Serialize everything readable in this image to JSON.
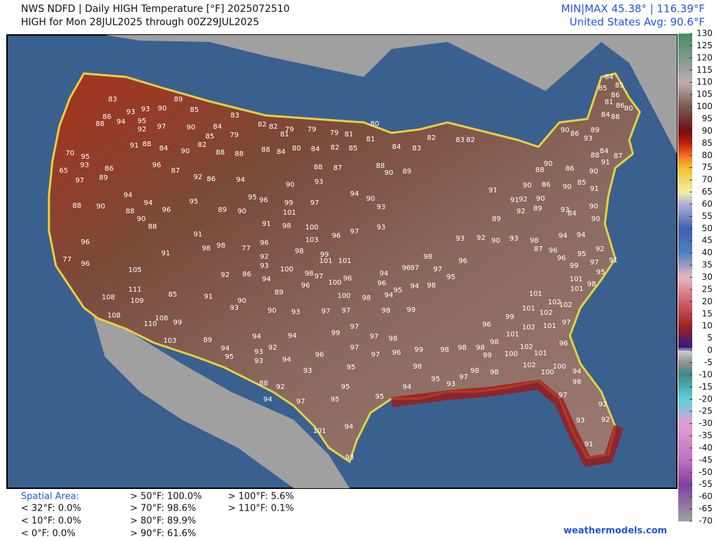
{
  "header": {
    "title": "NWS NDFD | Daily HIGH Temperature [°F]  2025072510",
    "subtitle": "HIGH for Mon 28JUL2025 through 00Z29JUL2025",
    "minmax": "MIN|MAX 45.38° | 116.39°F",
    "average": "United States Avg: 90.6°F"
  },
  "colorbar": {
    "ticks": [
      130,
      125,
      120,
      115,
      110,
      105,
      100,
      95,
      90,
      85,
      80,
      75,
      70,
      65,
      60,
      55,
      50,
      45,
      40,
      35,
      30,
      25,
      20,
      15,
      10,
      5,
      0,
      -5,
      -10,
      -15,
      -20,
      -25,
      -30,
      -35,
      -40,
      -45,
      -50,
      -55,
      -60,
      -65,
      -70
    ]
  },
  "spatial_area": {
    "title": "Spatial Area:",
    "items": [
      "< 32°F: 0.0%",
      "< 10°F: 0.0%",
      "< 0°F: 0.0%",
      "> 50°F: 100.0%",
      "> 70°F: 98.6%",
      "> 80°F: 89.9%",
      "> 90°F: 61.6%",
      "> 100°F: 5.6%",
      "> 110°F: 0.1%"
    ]
  },
  "credit": "weathermodels.com",
  "map_labels": [
    83,
    93,
    93,
    90,
    89,
    85,
    86,
    88,
    94,
    95,
    92,
    97,
    90,
    84,
    79,
    82,
    82,
    81,
    79,
    79,
    79,
    81,
    80,
    83,
    91,
    88,
    84,
    90,
    82,
    85,
    88,
    88,
    88,
    84,
    80,
    84,
    82,
    85,
    81,
    84,
    83,
    82,
    83,
    82,
    70,
    95,
    93,
    65,
    86,
    89,
    97,
    96,
    87,
    92,
    86,
    94,
    88,
    87,
    88,
    90,
    89,
    93,
    90,
    94,
    94,
    94,
    96,
    88,
    90,
    88,
    95,
    89,
    90,
    95,
    96,
    99,
    101,
    97,
    90,
    93,
    88,
    90,
    96,
    96,
    77,
    105,
    111,
    109,
    108,
    108,
    110,
    108,
    99,
    103,
    91,
    91,
    98,
    98,
    77,
    85,
    91,
    93,
    90,
    92,
    86,
    94,
    89,
    92,
    93,
    96,
    91,
    98,
    100,
    103,
    96,
    97,
    93,
    98,
    99,
    101,
    101,
    100,
    98,
    97,
    96,
    100,
    96,
    100,
    98,
    90,
    93,
    97,
    97,
    94,
    98,
    99,
    97,
    99,
    97,
    98,
    94,
    94,
    89,
    94,
    95,
    93,
    93,
    92,
    94,
    96,
    97,
    97,
    96,
    99,
    98,
    98,
    95,
    98,
    93,
    88,
    92,
    95,
    94,
    95,
    93,
    97,
    94,
    97,
    95,
    95,
    94,
    101,
    93,
    90,
    86,
    89,
    84,
    88,
    85,
    86,
    81,
    86,
    84,
    85,
    80,
    93,
    88,
    91,
    84,
    87,
    90,
    88,
    90,
    86,
    85,
    90,
    86,
    90,
    91,
    92,
    90,
    89,
    93,
    84,
    90,
    90,
    91,
    91,
    89,
    92,
    93,
    92,
    90,
    93,
    94,
    94,
    98,
    87,
    96,
    92,
    95,
    91,
    97,
    99,
    96,
    95,
    101,
    98,
    101,
    102,
    101,
    101,
    102,
    102,
    97,
    101,
    102,
    101,
    102,
    101,
    96,
    100,
    102,
    100,
    100,
    94,
    98,
    97,
    92,
    93,
    92,
    91,
    99,
    96,
    98,
    98,
    99,
    98,
    98,
    96,
    98,
    97,
    96,
    94,
    96,
    95,
    94,
    98,
    95,
    97
  ]
}
